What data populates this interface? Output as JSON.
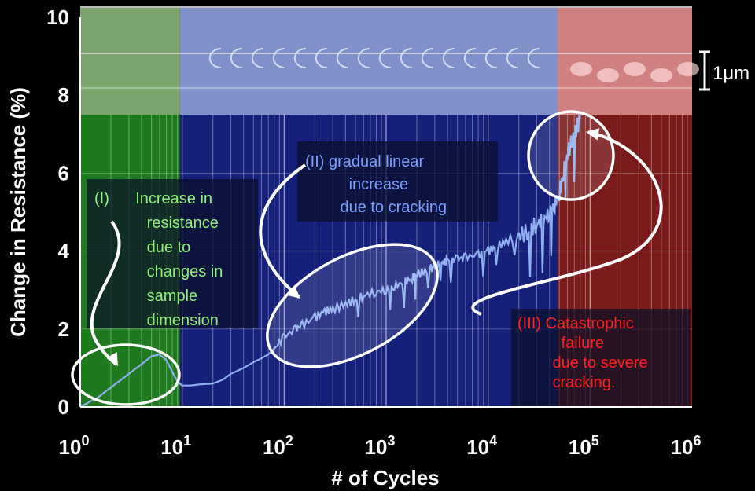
{
  "chart_data": {
    "type": "line",
    "xscale": "log",
    "xlabel": "# of Cycles",
    "ylabel": "Change in Resistance (%)",
    "xlim": [
      1,
      1000000
    ],
    "ylim": [
      0,
      10
    ],
    "x_ticks": [
      {
        "value": 1,
        "base": "10",
        "exp": "0"
      },
      {
        "value": 10,
        "base": "10",
        "exp": "1"
      },
      {
        "value": 100,
        "base": "10",
        "exp": "2"
      },
      {
        "value": 1000,
        "base": "10",
        "exp": "3"
      },
      {
        "value": 10000,
        "base": "10",
        "exp": "4"
      },
      {
        "value": 100000,
        "base": "10",
        "exp": "5"
      },
      {
        "value": 1000000,
        "base": "10",
        "exp": "6"
      }
    ],
    "y_ticks": [
      "0",
      "2",
      "4",
      "6",
      "8",
      "10"
    ],
    "grid": true,
    "regions": [
      {
        "from": 1,
        "to": 9.5,
        "color": "#1f7a1f"
      },
      {
        "from": 9.5,
        "to": 48000,
        "color": "#15207a"
      },
      {
        "from": 48000,
        "to": 1000000,
        "color": "#7a1a1a"
      }
    ],
    "series": [
      {
        "color": "#8fb0f0",
        "x": [
          1,
          1.5,
          2,
          3,
          4,
          5,
          6,
          7,
          8,
          9,
          10,
          12,
          15,
          20,
          25,
          30,
          40,
          50,
          60,
          70,
          80,
          100,
          130,
          150,
          200,
          250,
          300,
          400,
          500,
          600,
          800,
          1000,
          1200,
          1500,
          1800,
          2000,
          2500,
          3000,
          3500,
          4000,
          5000,
          6000,
          8000,
          10000,
          12000,
          15000,
          20000,
          25000,
          30000,
          35000,
          40000,
          45000,
          50000,
          55000,
          60000,
          70000,
          80000
        ],
        "y": [
          0,
          0.25,
          0.5,
          0.85,
          1.1,
          1.3,
          1.35,
          1.2,
          0.9,
          0.65,
          0.55,
          0.55,
          0.58,
          0.6,
          0.7,
          0.85,
          1.0,
          1.15,
          1.25,
          1.35,
          1.5,
          1.8,
          2.0,
          2.1,
          2.3,
          2.45,
          2.5,
          2.65,
          2.75,
          2.85,
          2.95,
          3.0,
          3.1,
          3.2,
          3.3,
          3.4,
          3.5,
          3.6,
          3.7,
          3.75,
          3.8,
          3.85,
          3.9,
          4.0,
          4.1,
          4.25,
          4.4,
          4.5,
          4.7,
          4.8,
          5.0,
          5.2,
          5.5,
          6.0,
          6.5,
          7.0,
          7.4
        ]
      }
    ],
    "sem_images": [
      {
        "from": 1,
        "to": 9.5,
        "tint": "#7aa36e"
      },
      {
        "from": 9.5,
        "to": 48000,
        "tint": "#8090c8"
      },
      {
        "from": 48000,
        "to": 1000000,
        "tint": "#d08080"
      }
    ],
    "scale_bar": "1μm",
    "annotations": [
      {
        "lines": [
          "(I)      Increase in",
          "            resistance",
          "            due to",
          "            changes in",
          "            sample",
          "            dimension"
        ],
        "color": "#8ff07a"
      },
      {
        "lines": [
          "(II) gradual linear",
          "          increase",
          "        due to cracking"
        ],
        "color": "#7aa0ff"
      },
      {
        "lines": [
          "(III) Catastrophic",
          "          failure",
          "        due to severe",
          "        cracking."
        ],
        "color": "#ff2020"
      }
    ]
  }
}
